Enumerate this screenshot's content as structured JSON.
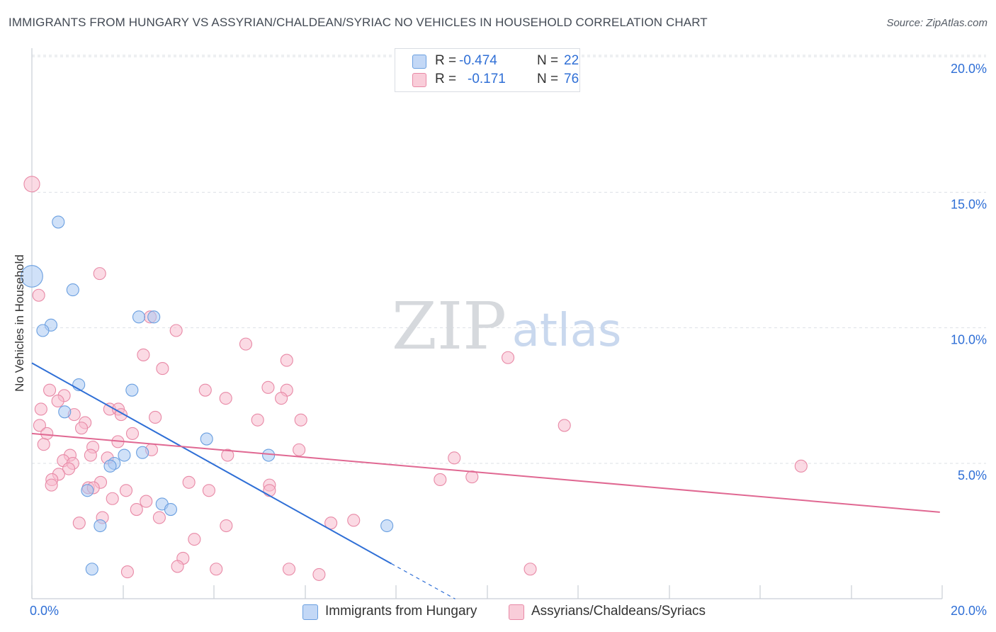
{
  "title": "IMMIGRANTS FROM HUNGARY VS ASSYRIAN/CHALDEAN/SYRIAC NO VEHICLES IN HOUSEHOLD CORRELATION CHART",
  "source": "Source: ZipAtlas.com",
  "watermark": {
    "zip": "ZIP",
    "atlas": "atlas"
  },
  "legend": {
    "series1": {
      "r_label": "R =",
      "r_value": "-0.474",
      "n_label": "N =",
      "n_value": "22"
    },
    "series2": {
      "r_label": "R =",
      "r_value": "-0.171",
      "n_label": "N =",
      "n_value": "76"
    }
  },
  "bottom_legend": {
    "series1": "Immigrants from Hungary",
    "series2": "Assyrians/Chaldeans/Syriacs"
  },
  "colors": {
    "blue_fill": "#aac8f2",
    "blue_stroke": "#6a9fe0",
    "blue_line": "#2f6fd6",
    "pink_fill": "#f7bccd",
    "pink_stroke": "#e889a6",
    "pink_line": "#e06892",
    "axis_text": "#2f6fd6",
    "grid": "#dde1e6"
  },
  "chart_data": {
    "type": "scatter",
    "title": "IMMIGRANTS FROM HUNGARY VS ASSYRIAN/CHALDEAN/SYRIAC NO VEHICLES IN HOUSEHOLD CORRELATION CHART",
    "xlabel": "",
    "ylabel": "No Vehicles in Household",
    "xlim": [
      0,
      20
    ],
    "ylim": [
      0,
      20.5
    ],
    "x_tick_labels": [
      "0.0%",
      "20.0%"
    ],
    "y_ticks": [
      5,
      10,
      15,
      20
    ],
    "y_tick_labels": [
      "5.0%",
      "10.0%",
      "15.0%",
      "20.0%"
    ],
    "grid": true,
    "series": [
      {
        "name": "Immigrants from Hungary",
        "color": "blue",
        "points": [
          [
            0.0,
            11.9,
            1.8
          ],
          [
            0.58,
            13.9,
            1
          ],
          [
            0.9,
            11.4,
            1
          ],
          [
            0.42,
            10.1,
            1
          ],
          [
            0.24,
            9.9,
            1
          ],
          [
            2.35,
            10.4,
            1
          ],
          [
            2.68,
            10.4,
            1
          ],
          [
            1.03,
            7.9,
            1
          ],
          [
            2.2,
            7.7,
            1
          ],
          [
            0.72,
            6.9,
            1
          ],
          [
            3.84,
            5.9,
            1
          ],
          [
            5.2,
            5.3,
            1
          ],
          [
            2.43,
            5.4,
            1
          ],
          [
            2.03,
            5.3,
            1
          ],
          [
            1.81,
            5.0,
            1
          ],
          [
            1.72,
            4.9,
            1
          ],
          [
            1.22,
            4.0,
            1
          ],
          [
            2.86,
            3.5,
            1
          ],
          [
            3.05,
            3.3,
            1
          ],
          [
            1.5,
            2.7,
            1
          ],
          [
            7.8,
            2.7,
            1
          ],
          [
            1.32,
            1.1,
            1
          ]
        ],
        "trend": {
          "x0": 0.0,
          "y0": 8.7,
          "x1": 7.9,
          "y1": 1.3,
          "dash_x_end": 9.3,
          "dash_y_end": 0.0
        }
      },
      {
        "name": "Assyrians/Chaldeans/Syriacs",
        "color": "pink",
        "points": [
          [
            0.0,
            15.3,
            1.3
          ],
          [
            0.15,
            11.2,
            1
          ],
          [
            1.49,
            12.0,
            1
          ],
          [
            2.6,
            10.4,
            1
          ],
          [
            3.17,
            9.9,
            1
          ],
          [
            4.7,
            9.4,
            1
          ],
          [
            2.45,
            9.0,
            1
          ],
          [
            5.6,
            8.8,
            1
          ],
          [
            2.87,
            8.5,
            1
          ],
          [
            10.46,
            8.9,
            1
          ],
          [
            0.39,
            7.7,
            1
          ],
          [
            0.71,
            7.5,
            1
          ],
          [
            3.81,
            7.7,
            1
          ],
          [
            4.26,
            7.4,
            1
          ],
          [
            5.19,
            7.8,
            1
          ],
          [
            5.6,
            7.7,
            1
          ],
          [
            5.48,
            7.4,
            1
          ],
          [
            0.57,
            7.3,
            1
          ],
          [
            0.2,
            7.0,
            1
          ],
          [
            1.71,
            7.0,
            1
          ],
          [
            1.9,
            7.0,
            1
          ],
          [
            0.93,
            6.8,
            1
          ],
          [
            1.96,
            6.8,
            1
          ],
          [
            2.71,
            6.7,
            1
          ],
          [
            4.96,
            6.6,
            1
          ],
          [
            5.91,
            6.6,
            1
          ],
          [
            1.17,
            6.5,
            1
          ],
          [
            0.17,
            6.4,
            1
          ],
          [
            1.09,
            6.3,
            1
          ],
          [
            11.7,
            6.4,
            1
          ],
          [
            0.33,
            6.1,
            1
          ],
          [
            2.21,
            6.1,
            1
          ],
          [
            0.26,
            5.7,
            1
          ],
          [
            1.34,
            5.6,
            1
          ],
          [
            1.89,
            5.8,
            1
          ],
          [
            5.87,
            5.5,
            1
          ],
          [
            0.84,
            5.3,
            1
          ],
          [
            1.29,
            5.3,
            1
          ],
          [
            1.66,
            5.2,
            1
          ],
          [
            2.63,
            5.5,
            1
          ],
          [
            4.3,
            5.3,
            1
          ],
          [
            9.28,
            5.2,
            1
          ],
          [
            0.69,
            5.1,
            1
          ],
          [
            0.9,
            5.0,
            1
          ],
          [
            0.81,
            4.8,
            1
          ],
          [
            0.59,
            4.6,
            1
          ],
          [
            0.44,
            4.4,
            1
          ],
          [
            16.9,
            4.9,
            1
          ],
          [
            1.51,
            4.3,
            1
          ],
          [
            3.45,
            4.3,
            1
          ],
          [
            0.43,
            4.2,
            1
          ],
          [
            1.24,
            4.1,
            1
          ],
          [
            1.35,
            4.1,
            1
          ],
          [
            5.22,
            4.2,
            1
          ],
          [
            2.07,
            4.0,
            1
          ],
          [
            3.89,
            4.0,
            1
          ],
          [
            5.22,
            4.0,
            1
          ],
          [
            8.97,
            4.4,
            1
          ],
          [
            9.67,
            4.5,
            1
          ],
          [
            1.77,
            3.7,
            1
          ],
          [
            2.51,
            3.6,
            1
          ],
          [
            2.3,
            3.3,
            1
          ],
          [
            1.55,
            3.0,
            1
          ],
          [
            2.8,
            3.0,
            1
          ],
          [
            1.04,
            2.8,
            1
          ],
          [
            4.27,
            2.7,
            1
          ],
          [
            6.57,
            2.8,
            1
          ],
          [
            7.07,
            2.9,
            1
          ],
          [
            3.57,
            2.2,
            1
          ],
          [
            3.32,
            1.5,
            1
          ],
          [
            3.2,
            1.2,
            1
          ],
          [
            4.05,
            1.1,
            1
          ],
          [
            5.65,
            1.1,
            1
          ],
          [
            10.95,
            1.1,
            1
          ],
          [
            2.1,
            1.0,
            1
          ],
          [
            6.31,
            0.9,
            1
          ]
        ],
        "trend": {
          "x0": 0.0,
          "y0": 6.1,
          "x1": 19.95,
          "y1": 3.2
        }
      }
    ]
  }
}
